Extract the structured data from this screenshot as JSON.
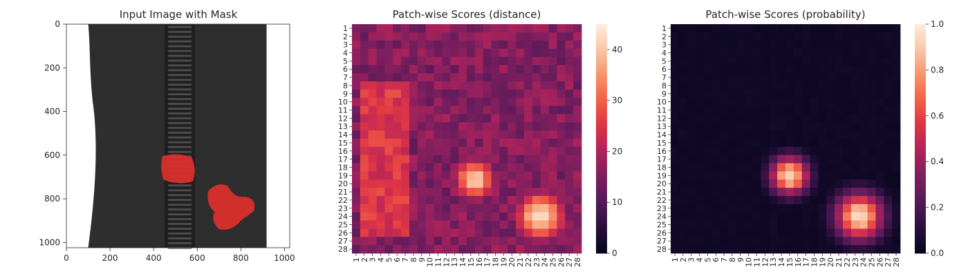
{
  "chart_data": [
    {
      "type": "image",
      "title": "Input Image with Mask",
      "xlim": [
        0,
        1024
      ],
      "ylim": [
        1024,
        0
      ],
      "xticks": [
        0,
        200,
        400,
        600,
        800,
        1000
      ],
      "yticks": [
        0,
        200,
        400,
        600,
        800,
        1000
      ],
      "colors": {
        "fabric": "#2e2e2e",
        "zipper": "#1f1f1f",
        "mask": "#e0302c",
        "background": "#ffffff"
      },
      "mask_regions": [
        {
          "center": [
            512,
            660
          ],
          "extent": [
            150,
            150
          ]
        },
        {
          "center": [
            745,
            830
          ],
          "extent": [
            230,
            210
          ]
        }
      ]
    },
    {
      "type": "heatmap",
      "title": "Patch-wise Scores (distance)",
      "rows": 28,
      "cols": 28,
      "colorbar": {
        "min": 0,
        "max": 45,
        "ticks": [
          0,
          10,
          20,
          30,
          40
        ]
      },
      "baseline": 16,
      "hotspots": [
        {
          "row": 19.5,
          "col": 15.5,
          "peak": 43,
          "spread": 2.0
        },
        {
          "row": 24.0,
          "col": 23.5,
          "peak": 45,
          "spread": 2.4
        }
      ],
      "warm_band": {
        "cols": [
          2,
          7
        ],
        "rows": [
          8,
          26
        ],
        "value": 26
      }
    },
    {
      "type": "heatmap",
      "title": "Patch-wise Scores (probability)",
      "rows": 28,
      "cols": 28,
      "colorbar": {
        "min": 0.0,
        "max": 1.0,
        "ticks": [
          "0.0",
          "0.2",
          "0.4",
          "0.6",
          "0.8",
          "1.0"
        ]
      },
      "baseline": 0.04,
      "hotspots": [
        {
          "row": 19.0,
          "col": 15.0,
          "peak": 1.0,
          "spread": 1.6
        },
        {
          "row": 24.0,
          "col": 23.5,
          "peak": 1.0,
          "spread": 2.0
        }
      ]
    }
  ]
}
